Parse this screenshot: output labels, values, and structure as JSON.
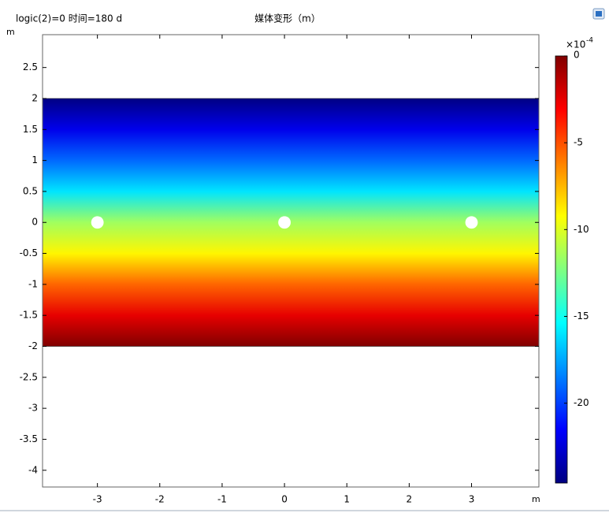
{
  "chart_data": {
    "type": "surface",
    "subtitle": "logic(2)=0 时间=180 d",
    "title": "媒体变形（m）",
    "x_unit": "m",
    "y_unit": "m",
    "xlim": [
      -3.88,
      4.08
    ],
    "ylim": [
      -4.27,
      3.03
    ],
    "xticks": [
      -3,
      -2,
      -1,
      0,
      1,
      2,
      3
    ],
    "yticks": [
      2.5,
      2,
      1.5,
      1,
      0.5,
      0,
      -0.5,
      -1,
      -1.5,
      -2,
      -2.5,
      -3,
      -3.5,
      -4
    ],
    "domain": {
      "xlim": [
        -3.88,
        4.08
      ],
      "ylim": [
        -2,
        2
      ]
    },
    "field": {
      "y": [
        2,
        1.5,
        1,
        0.5,
        0,
        -0.5,
        -1,
        -1.5,
        -2
      ],
      "values": [
        -24.5,
        -22,
        -19,
        -16,
        -11.5,
        -9,
        -5.5,
        -2.5,
        0
      ]
    },
    "holes": {
      "x": [
        -3,
        0,
        3
      ],
      "y": [
        0,
        0,
        0
      ],
      "r": 0.1
    },
    "colormap": "jet",
    "clim": [
      -24.6,
      0
    ],
    "cticks": [
      0,
      -5,
      -10,
      -15,
      -20
    ],
    "colorbar_scale": "×10",
    "colorbar_exponent": "-4"
  }
}
